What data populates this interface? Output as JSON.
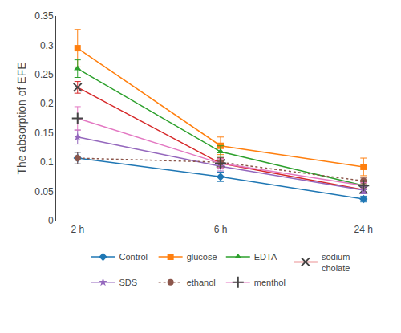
{
  "chart_data": {
    "type": "line",
    "categories": [
      "2 h",
      "6 h",
      "24 h"
    ],
    "ylabel": "The absorption of EFE",
    "ylim": [
      0,
      0.35
    ],
    "yticks": [
      0,
      0.05,
      0.1,
      0.15,
      0.2,
      0.25,
      0.3,
      0.35
    ],
    "grid": false,
    "legend": "bottom",
    "series": [
      {
        "name": "Control",
        "values": [
          0.107,
          0.075,
          0.037
        ],
        "yerr": [
          0.01,
          0.008,
          0.005
        ],
        "marker": "diamond",
        "line_style": "solid"
      },
      {
        "name": "glucose",
        "values": [
          0.295,
          0.128,
          0.092
        ],
        "yerr": [
          0.032,
          0.015,
          0.015
        ],
        "marker": "square",
        "line_style": "solid"
      },
      {
        "name": "EDTA",
        "values": [
          0.26,
          0.118,
          0.06
        ],
        "yerr": [
          0.015,
          0.01,
          0.007
        ],
        "marker": "triangle-up",
        "line_style": "solid"
      },
      {
        "name": "sodium\ncholate",
        "values": [
          0.228,
          0.098,
          0.053
        ],
        "yerr": [
          0.01,
          0.008,
          0.005
        ],
        "marker": "x",
        "line_style": "solid"
      },
      {
        "name": "SDS",
        "values": [
          0.143,
          0.093,
          0.052
        ],
        "yerr": [
          0.012,
          0.008,
          0.006
        ],
        "marker": "star",
        "line_style": "solid"
      },
      {
        "name": "ethanol",
        "values": [
          0.107,
          0.1,
          0.068
        ],
        "yerr": [
          0.01,
          0.008,
          0.005
        ],
        "marker": "circle",
        "line_style": "dotted"
      },
      {
        "name": "menthol",
        "values": [
          0.175,
          0.098,
          0.06
        ],
        "yerr": [
          0.02,
          0.008,
          0.005
        ],
        "marker": "cross",
        "line_style": "solid"
      }
    ]
  }
}
